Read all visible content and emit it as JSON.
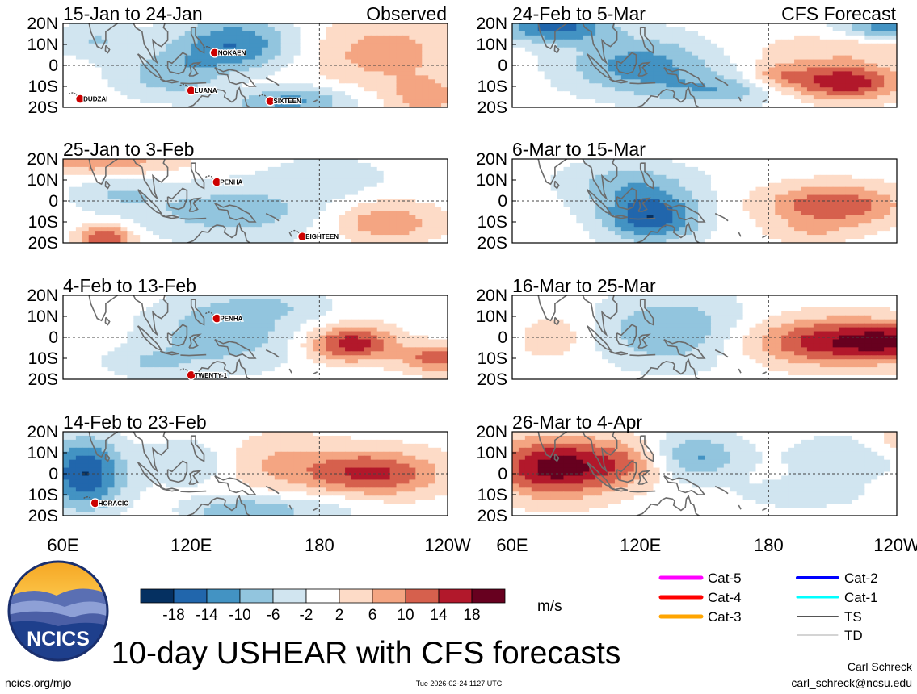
{
  "chart_data": {
    "type": "heatmap",
    "variable": "USHEAR",
    "units": "m/s",
    "headers": {
      "observed": "Observed",
      "forecast": "CFS Forecast"
    },
    "lat_ticks": [
      "20N",
      "10N",
      "0",
      "10S",
      "20S"
    ],
    "lon_ticks": [
      "60E",
      "120E",
      "180",
      "120W"
    ],
    "colorbar": {
      "levels": [
        -18,
        -14,
        -10,
        -6,
        -2,
        2,
        6,
        10,
        14,
        18
      ],
      "tick_labels": [
        "-18",
        "-14",
        "-10",
        "-6",
        "-2",
        "2",
        "6",
        "10",
        "14",
        "18"
      ],
      "colors": [
        "#053061",
        "#2166ac",
        "#4393c3",
        "#92c5de",
        "#d1e5f0",
        "#ffffff",
        "#fddbc7",
        "#f4a582",
        "#d6604d",
        "#b2182b",
        "#67001f"
      ]
    },
    "panels": [
      {
        "title": "15-Jan to 24-Jan",
        "kind": "observed",
        "blobs": [
          {
            "lon": 140,
            "lat": 10,
            "slon": 20,
            "slat": 9,
            "v": -14
          },
          {
            "lon": 110,
            "lat": -5,
            "slon": 18,
            "slat": 8,
            "v": -8
          },
          {
            "lon": 165,
            "lat": -17,
            "slon": 20,
            "slat": 5,
            "v": -12
          },
          {
            "lon": 75,
            "lat": 12,
            "slon": 14,
            "slat": 6,
            "v": -6
          },
          {
            "lon": 210,
            "lat": 6,
            "slon": 25,
            "slat": 12,
            "v": 8
          },
          {
            "lon": 230,
            "lat": -15,
            "slon": 12,
            "slat": 6,
            "v": 8
          },
          {
            "lon": 145,
            "lat": -12,
            "slon": 12,
            "slat": 5,
            "v": 3
          }
        ],
        "storms": [
          {
            "name": "NOKAEN",
            "lon": 131,
            "lat": 6
          },
          {
            "name": "LUANA",
            "lon": 120,
            "lat": -12
          },
          {
            "name": "SIXTEEN",
            "lon": 157,
            "lat": -17
          },
          {
            "name": "DUDZAI",
            "lon": 68,
            "lat": -16
          }
        ]
      },
      {
        "title": "25-Jan to 3-Feb",
        "kind": "observed",
        "blobs": [
          {
            "lon": 80,
            "lat": -18,
            "slon": 9,
            "slat": 5,
            "v": 15
          },
          {
            "lon": 80,
            "lat": 18,
            "slon": 25,
            "slat": 5,
            "v": 9
          },
          {
            "lon": 210,
            "lat": -10,
            "slon": 18,
            "slat": 7,
            "v": 10
          },
          {
            "lon": 140,
            "lat": -5,
            "slon": 35,
            "slat": 10,
            "v": -8
          },
          {
            "lon": 85,
            "lat": 5,
            "slon": 15,
            "slat": 7,
            "v": -5
          },
          {
            "lon": 185,
            "lat": 12,
            "slon": 18,
            "slat": 6,
            "v": -5
          }
        ],
        "storms": [
          {
            "name": "PENHA",
            "lon": 132,
            "lat": 9
          },
          {
            "name": "EIGHTEEN",
            "lon": 172,
            "lat": -17
          }
        ]
      },
      {
        "title": "4-Feb to 13-Feb",
        "kind": "observed",
        "blobs": [
          {
            "lon": 195,
            "lat": -3,
            "slon": 14,
            "slat": 6,
            "v": 17
          },
          {
            "lon": 235,
            "lat": -10,
            "slon": 12,
            "slat": 5,
            "v": 12
          },
          {
            "lon": 135,
            "lat": 2,
            "slon": 25,
            "slat": 12,
            "v": -9
          },
          {
            "lon": 160,
            "lat": 15,
            "slon": 20,
            "slat": 5,
            "v": -4
          },
          {
            "lon": 100,
            "lat": -12,
            "slon": 15,
            "slat": 5,
            "v": -5
          }
        ],
        "storms": [
          {
            "name": "PENHA",
            "lon": 132,
            "lat": 9
          },
          {
            "name": "TWENTY-1",
            "lon": 120,
            "lat": -18
          }
        ]
      },
      {
        "title": "14-Feb to 23-Feb",
        "kind": "observed",
        "blobs": [
          {
            "lon": 70,
            "lat": 0,
            "slon": 13,
            "slat": 12,
            "v": -18
          },
          {
            "lon": 145,
            "lat": -18,
            "slon": 18,
            "slat": 5,
            "v": -10
          },
          {
            "lon": 120,
            "lat": 5,
            "slon": 15,
            "slat": 8,
            "v": -6
          },
          {
            "lon": 205,
            "lat": 0,
            "slon": 22,
            "slat": 8,
            "v": 15
          },
          {
            "lon": 160,
            "lat": 5,
            "slon": 20,
            "slat": 10,
            "v": 6
          },
          {
            "lon": 185,
            "lat": -15,
            "slon": 20,
            "slat": 5,
            "v": -4
          }
        ],
        "storms": [
          {
            "name": "HORACIO",
            "lon": 75,
            "lat": -14
          }
        ]
      },
      {
        "title": "24-Feb to 5-Mar",
        "kind": "forecast",
        "blobs": [
          {
            "lon": 80,
            "lat": 18,
            "slon": 18,
            "slat": 5,
            "v": -15
          },
          {
            "lon": 235,
            "lat": 18,
            "slon": 15,
            "slat": 4,
            "v": -12
          },
          {
            "lon": 120,
            "lat": 0,
            "slon": 25,
            "slat": 10,
            "v": -12
          },
          {
            "lon": 160,
            "lat": -12,
            "slon": 22,
            "slat": 5,
            "v": -8
          },
          {
            "lon": 215,
            "lat": -8,
            "slon": 18,
            "slat": 6,
            "v": 18
          },
          {
            "lon": 185,
            "lat": -5,
            "slon": 10,
            "slat": 5,
            "v": 8
          },
          {
            "lon": 215,
            "lat": 8,
            "slon": 30,
            "slat": 5,
            "v": 5
          }
        ],
        "storms": []
      },
      {
        "title": "6-Mar to 15-Mar",
        "kind": "forecast",
        "blobs": [
          {
            "lon": 125,
            "lat": -8,
            "slon": 16,
            "slat": 8,
            "v": -17
          },
          {
            "lon": 115,
            "lat": 8,
            "slon": 22,
            "slat": 8,
            "v": -8
          },
          {
            "lon": 210,
            "lat": -2,
            "slon": 22,
            "slat": 7,
            "v": 14
          },
          {
            "lon": 200,
            "lat": -15,
            "slon": 15,
            "slat": 4,
            "v": 4
          }
        ],
        "storms": []
      },
      {
        "title": "16-Mar to 25-Mar",
        "kind": "forecast",
        "blobs": [
          {
            "lon": 210,
            "lat": -2,
            "slon": 28,
            "slat": 8,
            "v": 17
          },
          {
            "lon": 240,
            "lat": -2,
            "slon": 15,
            "slat": 6,
            "v": 10
          },
          {
            "lon": 135,
            "lat": 3,
            "slon": 25,
            "slat": 12,
            "v": -10
          },
          {
            "lon": 80,
            "lat": 0,
            "slon": 12,
            "slat": 8,
            "v": 5
          }
        ],
        "storms": []
      },
      {
        "title": "26-Mar to 4-Apr",
        "kind": "forecast",
        "blobs": [
          {
            "lon": 80,
            "lat": 3,
            "slon": 20,
            "slat": 10,
            "v": 20
          },
          {
            "lon": 115,
            "lat": 5,
            "slon": 15,
            "slat": 8,
            "v": 8
          },
          {
            "lon": 145,
            "lat": 8,
            "slon": 15,
            "slat": 8,
            "v": -11
          },
          {
            "lon": 215,
            "lat": 8,
            "slon": 20,
            "slat": 8,
            "v": -5
          },
          {
            "lon": 195,
            "lat": -10,
            "slon": 22,
            "slat": 5,
            "v": -4
          },
          {
            "lon": 240,
            "lat": 15,
            "slon": 10,
            "slat": 5,
            "v": 5
          }
        ],
        "storms": []
      }
    ],
    "storm_legend": [
      {
        "label": "Cat-5",
        "color": "#ff00ff"
      },
      {
        "label": "Cat-4",
        "color": "#ff0000"
      },
      {
        "label": "Cat-3",
        "color": "#ffa500"
      },
      {
        "label": "Cat-2",
        "color": "#0000ff"
      },
      {
        "label": "Cat-1",
        "color": "#00ffff"
      },
      {
        "label": "TS",
        "color": "#555555"
      },
      {
        "label": "TD",
        "color": "#aaaaaa"
      }
    ],
    "title": "10-day USHEAR with CFS forecasts"
  },
  "logo_text": "NCICS",
  "footer": {
    "left": "ncics.org/mjo",
    "center": "Tue 2026-02-24 1127 UTC",
    "author": "Carl Schreck",
    "email": "carl_schreck@ncsu.edu"
  }
}
